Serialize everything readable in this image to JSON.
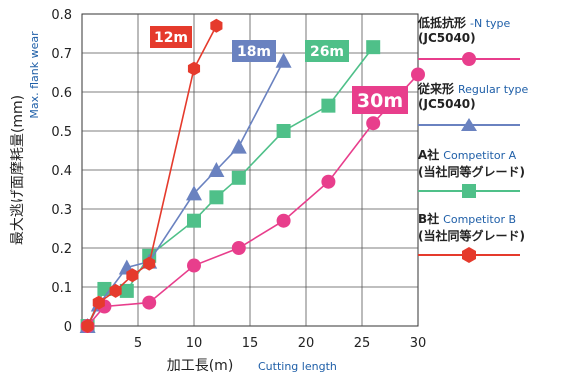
{
  "chart_data": {
    "type": "line",
    "xlabel_jp": "加工長(m)",
    "xlabel_en": "Cutting length",
    "ylabel_jp": "最大逃げ面摩耗量(mm)",
    "ylabel_en": "Max. flank wear",
    "xlim": [
      0,
      30
    ],
    "ylim": [
      0,
      0.8
    ],
    "xticks": [
      5,
      10,
      15,
      20,
      25,
      30
    ],
    "yticks": [
      0,
      0.1,
      0.2,
      0.3,
      0.4,
      0.5,
      0.6,
      0.7,
      0.8
    ],
    "xtick_labels": [
      "5",
      "10",
      "15",
      "20",
      "25",
      "30"
    ],
    "ytick_labels": [
      "0",
      "0.1",
      "0.2",
      "0.3",
      "0.4",
      "0.5",
      "0.6",
      "0.7",
      "0.8"
    ],
    "grid": true,
    "series": [
      {
        "name": "低抵抗形 -N type (JC5040)",
        "marker": "circle",
        "color": "#e83e8c",
        "x": [
          0.5,
          2,
          6,
          10,
          14,
          18,
          22,
          26,
          30
        ],
        "y": [
          0.0,
          0.05,
          0.06,
          0.155,
          0.2,
          0.27,
          0.37,
          0.52,
          0.645
        ],
        "end_label": "30m"
      },
      {
        "name": "従来形 Regular type (JC5040)",
        "marker": "triangle",
        "color": "#6a82c0",
        "x": [
          0.5,
          1.5,
          4,
          6,
          10,
          12,
          14,
          18
        ],
        "y": [
          0.0,
          0.055,
          0.15,
          0.165,
          0.34,
          0.4,
          0.46,
          0.68
        ],
        "end_label": "18m"
      },
      {
        "name": "A社 Competitor A (当社同等グレード)",
        "marker": "square",
        "color": "#4fc089",
        "x": [
          0.5,
          2,
          4,
          6,
          10,
          12,
          14,
          18,
          22,
          26
        ],
        "y": [
          0.0,
          0.095,
          0.09,
          0.18,
          0.27,
          0.33,
          0.38,
          0.5,
          0.565,
          0.715
        ],
        "end_label": "26m"
      },
      {
        "name": "B社 Competitor B (当社同等グレード)",
        "marker": "hexagon",
        "color": "#e53a2c",
        "x": [
          0.5,
          1.5,
          3,
          4.5,
          6,
          10,
          12
        ],
        "y": [
          0.0,
          0.06,
          0.09,
          0.13,
          0.16,
          0.66,
          0.77
        ],
        "end_label": "12m"
      }
    ]
  },
  "legend": [
    {
      "jp": "低抵抗形",
      "en": "-N type",
      "sub": "(JC5040)",
      "marker": "circle",
      "color": "#e83e8c"
    },
    {
      "jp": "従来形",
      "en": "Regular type",
      "sub": "(JC5040)",
      "marker": "triangle",
      "color": "#6a82c0"
    },
    {
      "jp": "A社",
      "en": "Competitor A",
      "sub": "(当社同等グレード)",
      "marker": "square",
      "color": "#4fc089"
    },
    {
      "jp": "B社",
      "en": "Competitor B",
      "sub": "(当社同等グレード)",
      "marker": "hexagon",
      "color": "#e53a2c"
    }
  ]
}
